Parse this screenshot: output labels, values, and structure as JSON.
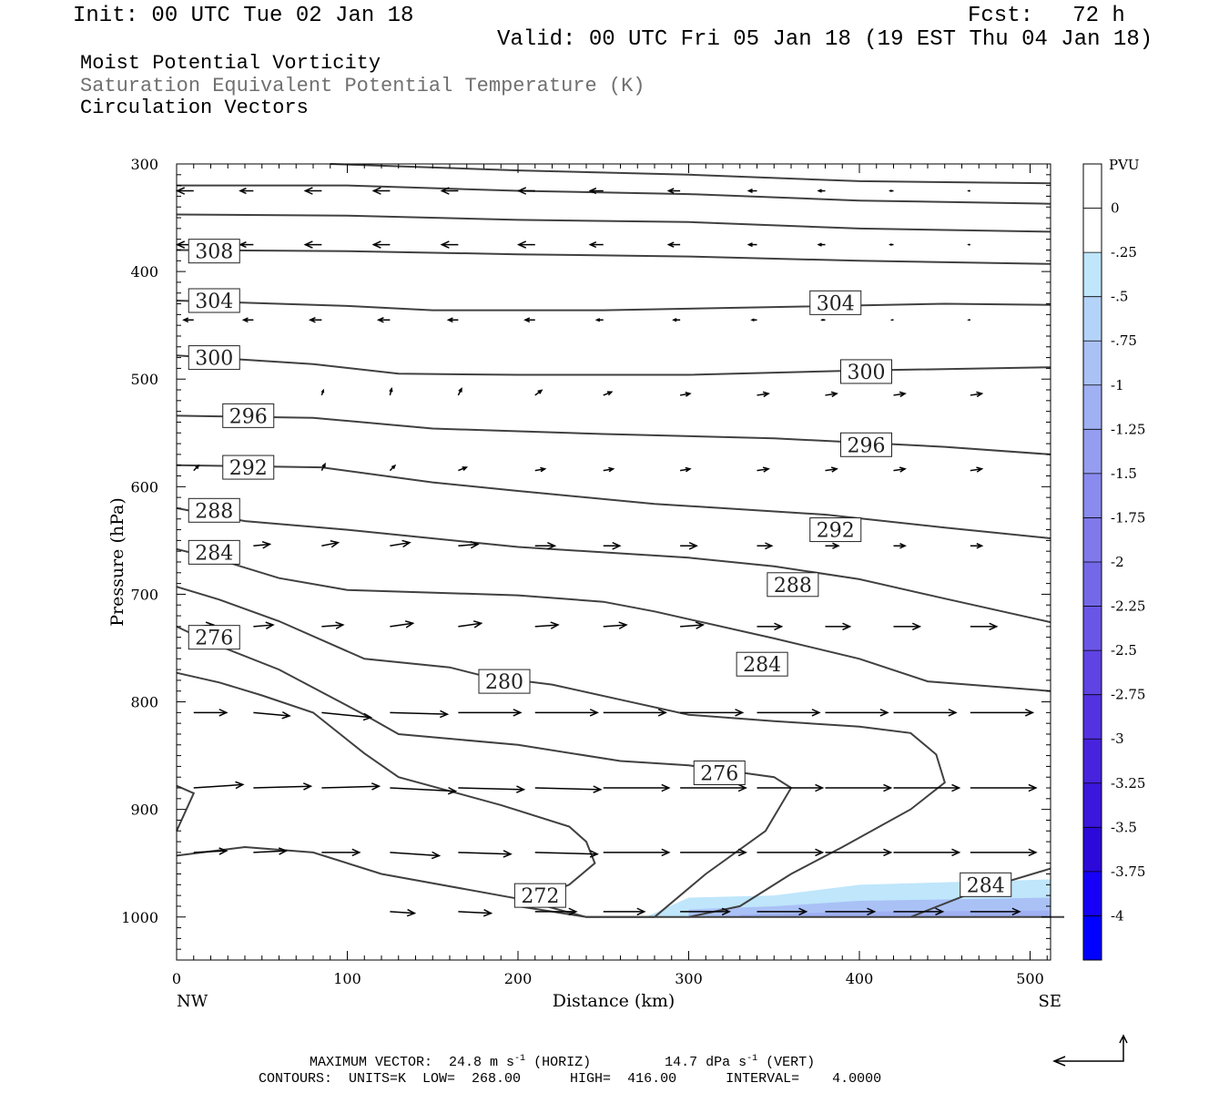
{
  "header": {
    "init": "Init: 00 UTC Tue 02 Jan 18",
    "fcst": "Fcst:   72 h",
    "valid": "Valid: 00 UTC Fri 05 Jan 18 (19 EST Thu 04 Jan 18)"
  },
  "titles": {
    "line1": "Moist Potential Vorticity",
    "line2": "Saturation Equivalent Potential Temperature (K)",
    "line3": "Circulation Vectors"
  },
  "footer": {
    "max_vector": "MAXIMUM VECTOR:  24.8 m s",
    "max_vector_horiz": " (HORIZ)",
    "max_vector_vert_val": "14.7 dPa s",
    "max_vector_vert": " (VERT)",
    "sup": "-1",
    "contours": "CONTOURS:  UNITS=K  LOW=  268.00      HIGH=  416.00      INTERVAL=    4.0000"
  },
  "colors": {
    "contour": "#404040",
    "pvu_scale": [
      "#ffffff",
      "#ffffff",
      "#bfe6fb",
      "#b4d3f8",
      "#aac1f6",
      "#9fb0f3",
      "#949df0",
      "#8a8bee",
      "#7f79eb",
      "#7468e8",
      "#6a56e6",
      "#5f43e3",
      "#5332e1",
      "#4823de",
      "#3b16dc",
      "#2c09d9",
      "#1600f8",
      "#0000ff"
    ]
  },
  "chart_data": {
    "type": "cross-section",
    "xlabel": "Distance (km)",
    "ylabel": "Pressure (hPa)",
    "xlim": [
      0,
      512
    ],
    "ylim": [
      1040,
      300
    ],
    "x_ticks": [
      "0",
      "100",
      "200",
      "300",
      "400",
      "500"
    ],
    "y_ticks": [
      "300",
      "400",
      "500",
      "600",
      "700",
      "800",
      "900",
      "1000"
    ],
    "x_end_labels": {
      "left": "NW",
      "right": "SE"
    },
    "colorbar": {
      "unit": "PVU",
      "labels": [
        "0",
        "-.25",
        "-.5",
        "-.75",
        "-1",
        "-1.25",
        "-1.5",
        "-1.75",
        "-2",
        "-2.25",
        "-2.5",
        "-2.75",
        "-3",
        "-3.25",
        "-3.5",
        "-3.75",
        "-4"
      ]
    },
    "pv_region": {
      "levels": [
        {
          "value": -0.25,
          "points": [
            [
              275,
              1000
            ],
            [
              300,
              982
            ],
            [
              350,
              980
            ],
            [
              400,
              970
            ],
            [
              512,
              965
            ],
            [
              512,
              1000
            ],
            [
              275,
              1000
            ]
          ]
        },
        {
          "value": -0.5,
          "points": [
            [
              300,
              993
            ],
            [
              350,
              990
            ],
            [
              400,
              985
            ],
            [
              512,
              982
            ],
            [
              512,
              1000
            ],
            [
              300,
              1000
            ]
          ]
        },
        {
          "value": -0.75,
          "points": [
            [
              330,
              998
            ],
            [
              400,
              995
            ],
            [
              512,
              994
            ],
            [
              512,
              1000
            ],
            [
              330,
              1000
            ]
          ]
        }
      ]
    },
    "contours": [
      {
        "value": 308,
        "points": [
          [
            0,
            320
          ],
          [
            100,
            320
          ],
          [
            200,
            325
          ],
          [
            300,
            328
          ],
          [
            400,
            334
          ],
          [
            512,
            337
          ]
        ]
      },
      {
        "value": 0,
        "points": [
          [
            90,
            300
          ],
          [
            200,
            306
          ],
          [
            300,
            310
          ],
          [
            400,
            316
          ],
          [
            512,
            318
          ]
        ]
      },
      {
        "value": 0,
        "points": [
          [
            0,
            347
          ],
          [
            100,
            348
          ],
          [
            200,
            352
          ],
          [
            300,
            354
          ],
          [
            400,
            360
          ],
          [
            512,
            363
          ]
        ]
      },
      {
        "value": 308,
        "points": [
          [
            0,
            380
          ],
          [
            100,
            381
          ],
          [
            200,
            384
          ],
          [
            300,
            386
          ],
          [
            400,
            390
          ],
          [
            512,
            393
          ]
        ]
      },
      {
        "value": 304,
        "points": [
          [
            0,
            427
          ],
          [
            100,
            432
          ],
          [
            150,
            436
          ],
          [
            250,
            436
          ],
          [
            350,
            433
          ],
          [
            450,
            430
          ],
          [
            512,
            431
          ]
        ]
      },
      {
        "value": 300,
        "points": [
          [
            0,
            478
          ],
          [
            80,
            486
          ],
          [
            130,
            495
          ],
          [
            200,
            496
          ],
          [
            300,
            496
          ],
          [
            400,
            492
          ],
          [
            512,
            489
          ]
        ]
      },
      {
        "value": 296,
        "points": [
          [
            0,
            534
          ],
          [
            80,
            536
          ],
          [
            150,
            546
          ],
          [
            250,
            551
          ],
          [
            350,
            555
          ],
          [
            450,
            563
          ],
          [
            512,
            570
          ]
        ]
      },
      {
        "value": 292,
        "points": [
          [
            0,
            580
          ],
          [
            85,
            582
          ],
          [
            150,
            596
          ],
          [
            200,
            604
          ],
          [
            280,
            616
          ],
          [
            380,
            626
          ],
          [
            450,
            638
          ],
          [
            512,
            648
          ]
        ]
      },
      {
        "value": 288,
        "points": [
          [
            0,
            620
          ],
          [
            40,
            632
          ],
          [
            100,
            640
          ],
          [
            200,
            656
          ],
          [
            300,
            666
          ],
          [
            350,
            674
          ],
          [
            400,
            686
          ],
          [
            450,
            704
          ],
          [
            512,
            726
          ]
        ]
      },
      {
        "value": 284,
        "points": [
          [
            0,
            658
          ],
          [
            25,
            668
          ],
          [
            60,
            685
          ],
          [
            100,
            696
          ],
          [
            200,
            701
          ],
          [
            250,
            707
          ],
          [
            280,
            716
          ],
          [
            350,
            741
          ],
          [
            400,
            760
          ],
          [
            440,
            781
          ],
          [
            512,
            790
          ]
        ]
      },
      {
        "value": 280,
        "points": [
          [
            0,
            693
          ],
          [
            25,
            705
          ],
          [
            60,
            725
          ],
          [
            110,
            760
          ],
          [
            160,
            768
          ],
          [
            180,
            776
          ],
          [
            220,
            784
          ],
          [
            260,
            798
          ],
          [
            300,
            812
          ],
          [
            350,
            818
          ],
          [
            400,
            823
          ],
          [
            430,
            829
          ],
          [
            445,
            849
          ],
          [
            450,
            875
          ],
          [
            430,
            900
          ],
          [
            390,
            935
          ],
          [
            360,
            960
          ],
          [
            330,
            990
          ],
          [
            300,
            1000
          ]
        ]
      },
      {
        "value": 276,
        "points": [
          [
            0,
            730
          ],
          [
            20,
            745
          ],
          [
            60,
            770
          ],
          [
            110,
            812
          ],
          [
            130,
            830
          ],
          [
            200,
            840
          ],
          [
            260,
            855
          ],
          [
            300,
            859
          ],
          [
            350,
            870
          ],
          [
            360,
            880
          ],
          [
            345,
            920
          ],
          [
            310,
            960
          ],
          [
            280,
            1000
          ]
        ]
      },
      {
        "value": 272,
        "points": [
          [
            0,
            773
          ],
          [
            25,
            782
          ],
          [
            50,
            794
          ],
          [
            80,
            810
          ],
          [
            110,
            848
          ],
          [
            130,
            870
          ],
          [
            190,
            896
          ],
          [
            230,
            916
          ],
          [
            240,
            930
          ],
          [
            245,
            950
          ],
          [
            230,
            970
          ],
          [
            200,
            990
          ],
          [
            240,
            1000
          ],
          [
            520,
            1000
          ]
        ]
      },
      {
        "value": 272,
        "points": [
          [
            0,
            878
          ],
          [
            10,
            885
          ],
          [
            0,
            920
          ]
        ]
      },
      {
        "value": 268,
        "points": [
          [
            0,
            943
          ],
          [
            40,
            935
          ],
          [
            80,
            940
          ],
          [
            120,
            960
          ],
          [
            200,
            983
          ],
          [
            240,
            1000
          ],
          [
            280,
            1000
          ]
        ]
      },
      {
        "value": 284,
        "points": [
          [
            430,
            1000
          ],
          [
            470,
            975
          ],
          [
            512,
            955
          ]
        ]
      }
    ],
    "contour_labels": [
      {
        "text": "308",
        "x": 22,
        "p": 381
      },
      {
        "text": "304",
        "x": 22,
        "p": 427
      },
      {
        "text": "300",
        "x": 22,
        "p": 480
      },
      {
        "text": "296",
        "x": 42,
        "p": 534
      },
      {
        "text": "292",
        "x": 42,
        "p": 582
      },
      {
        "text": "288",
        "x": 22,
        "p": 622
      },
      {
        "text": "284",
        "x": 22,
        "p": 661
      },
      {
        "text": "276",
        "x": 22,
        "p": 740
      },
      {
        "text": "280",
        "x": 192,
        "p": 781
      },
      {
        "text": "272",
        "x": 213,
        "p": 980
      },
      {
        "text": "276",
        "x": 318,
        "p": 866
      },
      {
        "text": "284",
        "x": 343,
        "p": 765
      },
      {
        "text": "288",
        "x": 361,
        "p": 691
      },
      {
        "text": "292",
        "x": 386,
        "p": 640
      },
      {
        "text": "296",
        "x": 404,
        "p": 561
      },
      {
        "text": "300",
        "x": 404,
        "p": 493
      },
      {
        "text": "304",
        "x": 386,
        "p": 429
      },
      {
        "text": "284",
        "x": 474,
        "p": 970
      }
    ],
    "vectors": {
      "x": [
        10,
        45,
        85,
        125,
        165,
        210,
        250,
        295,
        340,
        380,
        420,
        465
      ],
      "rows": [
        {
          "p": 325,
          "u": [
            -1,
            -0.8,
            -1,
            -1,
            -1,
            -1,
            -0.8,
            -0.7,
            -0.5,
            -0.4,
            -0.2,
            -0.1
          ],
          "w": [
            0,
            0,
            0,
            0,
            0,
            0,
            0,
            0,
            0,
            0,
            0,
            0
          ]
        },
        {
          "p": 375,
          "u": [
            -1,
            -0.8,
            -1,
            -1,
            -1,
            -1,
            -0.8,
            -0.7,
            -0.5,
            -0.4,
            -0.2,
            -0.1
          ],
          "w": [
            0,
            0,
            0,
            0,
            0,
            0,
            0,
            0,
            0,
            0,
            0,
            0
          ]
        },
        {
          "p": 445,
          "u": [
            -0.6,
            -0.6,
            -0.7,
            -0.7,
            -0.6,
            -0.6,
            -0.4,
            -0.4,
            -0.3,
            -0.2,
            -0.1,
            -0.1
          ],
          "w": [
            0,
            0,
            0,
            0,
            0,
            0,
            0,
            0,
            0,
            0,
            0,
            0
          ]
        },
        {
          "p": 515,
          "u": [
            0,
            0,
            0.1,
            0.1,
            0.2,
            0.4,
            0.5,
            0.6,
            0.7,
            0.7,
            0.7,
            0.7
          ],
          "w": [
            0,
            0,
            0.3,
            0.4,
            0.4,
            0.3,
            0.2,
            0.1,
            0.1,
            0.1,
            0.1,
            0.1
          ]
        },
        {
          "p": 585,
          "u": [
            0.3,
            0.3,
            0.2,
            0.3,
            0.5,
            0.6,
            0.6,
            0.6,
            0.7,
            0.7,
            0.7,
            0.7
          ],
          "w": [
            0.3,
            0.3,
            0.4,
            0.3,
            0.2,
            0.1,
            0.1,
            0.1,
            0.1,
            0.1,
            0.1,
            0.1
          ]
        },
        {
          "p": 655,
          "u": [
            1,
            1,
            1,
            1.2,
            1.2,
            1.2,
            1.0,
            1.0,
            0.9,
            0.8,
            0.7,
            0.7
          ],
          "w": [
            0.2,
            0.1,
            0.2,
            0.2,
            0.1,
            0,
            0,
            0,
            0,
            0,
            0,
            0
          ]
        },
        {
          "p": 730,
          "u": [
            1.2,
            1.2,
            1.3,
            1.4,
            1.4,
            1.4,
            1.4,
            1.4,
            1.5,
            1.5,
            1.6,
            1.6
          ],
          "w": [
            0.1,
            0.1,
            0.1,
            0.2,
            0.2,
            0.1,
            0.1,
            0.1,
            0,
            0,
            0,
            0
          ]
        },
        {
          "p": 810,
          "u": [
            2,
            2.2,
            3,
            3.5,
            3.8,
            3.8,
            3.8,
            3.8,
            3.8,
            3.8,
            3.8,
            3.8
          ],
          "w": [
            0,
            -0.2,
            -0.3,
            -0.1,
            0,
            0,
            0,
            0,
            0,
            0,
            0,
            0
          ]
        },
        {
          "p": 880,
          "u": [
            3,
            3.5,
            3.5,
            4,
            4,
            4,
            4,
            4,
            4,
            4,
            4,
            4
          ],
          "w": [
            0.2,
            0.1,
            0.1,
            -0.2,
            -0.1,
            -0.1,
            0,
            0,
            0,
            0,
            0,
            0
          ]
        },
        {
          "p": 940,
          "u": [
            2,
            2,
            2.3,
            3,
            3.2,
            3.8,
            4,
            4,
            4,
            4,
            4,
            4
          ],
          "w": [
            0.1,
            0.1,
            0,
            -0.2,
            -0.1,
            -0.1,
            0,
            0,
            0,
            0,
            0,
            0
          ]
        },
        {
          "p": 995,
          "u": [
            0,
            0,
            0,
            1.5,
            2,
            2.5,
            2.5,
            3,
            3,
            3,
            3,
            3
          ],
          "w": [
            0,
            0,
            0,
            -0.1,
            -0.1,
            0,
            0,
            0,
            0,
            0,
            0,
            0
          ]
        }
      ]
    }
  }
}
